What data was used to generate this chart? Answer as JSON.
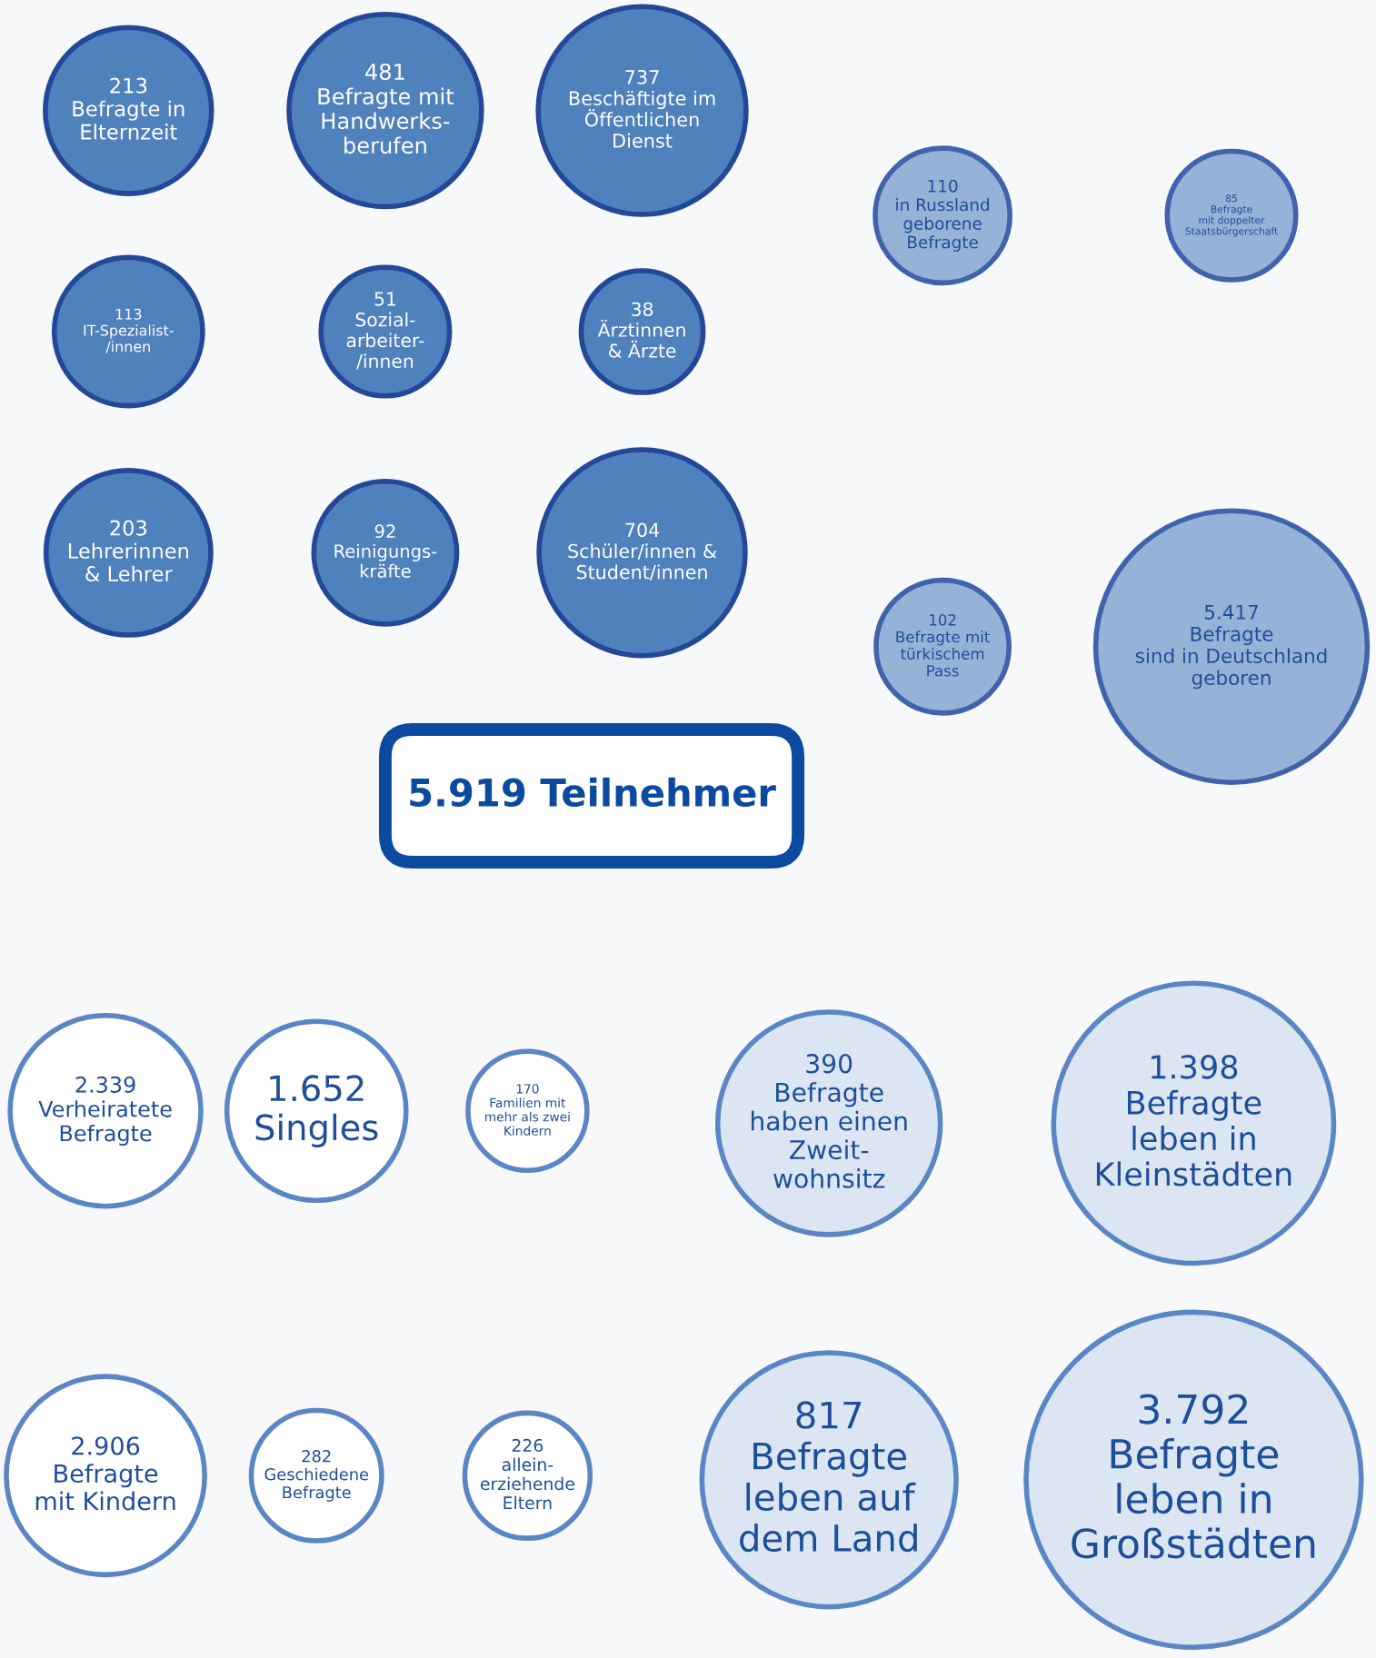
{
  "chart_data": {
    "type": "other",
    "title": "5.919 Teilnehmer",
    "categories": [
      "Befragte in\nElternzeit",
      "Befragte mit\nHandwerks-\nberufen",
      "Beschäftigte im\nÖffentlichen\nDienst",
      "IT-Spezialist-\n/innen",
      "Sozial-\narbeiter-\n/innen",
      "Ärztinnen\n& Ärzte",
      "Lehrerinnen\n& Lehrer",
      "Reinigungs-\nkräfte",
      "Schüler/innen &\nStudent/innen",
      "in Russland\ngeborene\nBefragte",
      "Befragte\nmit doppelter\nStaatsbürgerschaft",
      "Befragte mit\ntürkischem\nPass",
      "Befragte\nsind in Deutschland\ngeboren",
      "Verheiratete\nBefragte",
      "Singles",
      "Familien mit\nmehr als zwei\nKindern",
      "Befragte\nmit Kindern",
      "Geschiedene\nBefragte",
      "allein-\nerziehende\nEltern",
      "Befragte\nhaben einen\nZweit-\nwohnsitz",
      "Befragte\nleben in\nKleinstädten",
      "Befragte\nleben auf\ndem Land",
      "Befragte\nleben in\nGroßstädten"
    ],
    "values": [
      213,
      481,
      737,
      113,
      51,
      38,
      203,
      92,
      704,
      110,
      85,
      102,
      5417,
      2339,
      1652,
      170,
      2906,
      282,
      226,
      390,
      1398,
      817,
      3792
    ],
    "value_labels": [
      "213",
      "481",
      "737",
      "113",
      "51",
      "38",
      "203",
      "92",
      "704",
      "110",
      "85",
      "102",
      "5.417",
      "2.339",
      "1.652",
      "170",
      "2.906",
      "282",
      "226",
      "390",
      "1.398",
      "817",
      "3.792"
    ],
    "colors": [
      "#4f81bd",
      "#4f81bd",
      "#4f81bd",
      "#4f81bd",
      "#4f81bd",
      "#4f81bd",
      "#4f81bd",
      "#4f81bd",
      "#4f81bd",
      "#95b3d7",
      "#95b3d7",
      "#95b3d7",
      "#95b3d7",
      "#ffffff",
      "#ffffff",
      "#ffffff",
      "#ffffff",
      "#ffffff",
      "#ffffff",
      "#dce6f2",
      "#dce6f2",
      "#dce6f2",
      "#dce6f2"
    ]
  }
}
